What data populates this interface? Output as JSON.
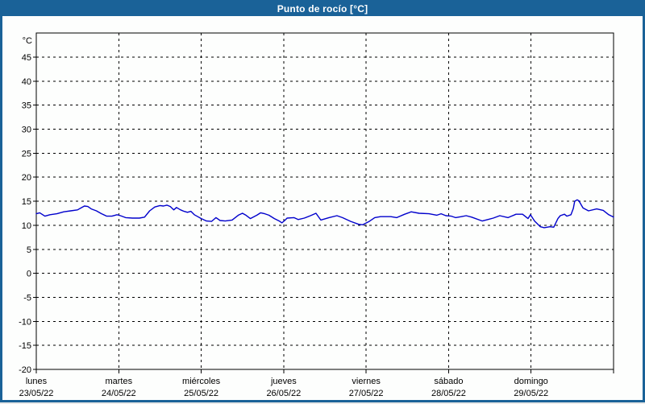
{
  "window": {
    "title": "Punto de rocío [°C]",
    "titlebar_color": "#1a6298",
    "frame_color": "#1a6298",
    "background_color": "#fdfefd"
  },
  "chart_data": {
    "type": "line",
    "title": "Punto de rocío [°C]",
    "ylabel": "°C",
    "unit_label": "°C",
    "ylim": [
      -20,
      50
    ],
    "y_ticks": [
      45,
      40,
      35,
      30,
      25,
      20,
      15,
      10,
      5,
      0,
      -5,
      -10,
      -15,
      -20
    ],
    "grid": true,
    "grid_style": "dashed-black",
    "line_color": "#0000cc",
    "x_axis": {
      "unit": "days",
      "days": [
        {
          "name": "lunes",
          "date": "23/05/22"
        },
        {
          "name": "martes",
          "date": "24/05/22"
        },
        {
          "name": "miércoles",
          "date": "25/05/22"
        },
        {
          "name": "jueves",
          "date": "26/05/22"
        },
        {
          "name": "viernes",
          "date": "27/05/22"
        },
        {
          "name": "sábado",
          "date": "28/05/22"
        },
        {
          "name": "domingo",
          "date": "29/05/22"
        }
      ],
      "hours_total": 168
    },
    "series": [
      {
        "name": "Punto de rocío",
        "unit": "°C",
        "color": "#0000cc",
        "points_hour_value": [
          [
            0,
            12.4
          ],
          [
            1,
            12.6
          ],
          [
            2.5,
            11.9
          ],
          [
            4,
            12.2
          ],
          [
            6,
            12.4
          ],
          [
            8,
            12.8
          ],
          [
            10,
            13.0
          ],
          [
            12,
            13.2
          ],
          [
            13,
            13.6
          ],
          [
            14,
            14.0
          ],
          [
            15,
            13.9
          ],
          [
            16,
            13.4
          ],
          [
            17.5,
            13.0
          ],
          [
            19,
            12.4
          ],
          [
            20.5,
            11.9
          ],
          [
            22,
            11.9
          ],
          [
            23.5,
            12.2
          ],
          [
            24.5,
            12.0
          ],
          [
            26,
            11.6
          ],
          [
            28,
            11.5
          ],
          [
            30,
            11.5
          ],
          [
            31.5,
            11.7
          ],
          [
            33,
            13.0
          ],
          [
            34.5,
            13.8
          ],
          [
            36,
            14.1
          ],
          [
            37,
            14.0
          ],
          [
            38,
            14.2
          ],
          [
            39,
            13.9
          ],
          [
            40,
            13.2
          ],
          [
            40.8,
            13.7
          ],
          [
            42,
            13.2
          ],
          [
            43,
            12.9
          ],
          [
            44,
            12.7
          ],
          [
            45,
            12.9
          ],
          [
            46,
            12.2
          ],
          [
            47,
            11.8
          ],
          [
            48,
            11.4
          ],
          [
            49.5,
            10.9
          ],
          [
            51,
            10.8
          ],
          [
            52.3,
            11.6
          ],
          [
            53.5,
            11.0
          ],
          [
            55,
            10.9
          ],
          [
            57,
            11.1
          ],
          [
            58.8,
            12.1
          ],
          [
            60,
            12.5
          ],
          [
            61,
            12.1
          ],
          [
            62.3,
            11.4
          ],
          [
            64.2,
            12.1
          ],
          [
            65.3,
            12.6
          ],
          [
            66.5,
            12.4
          ],
          [
            67.7,
            12.1
          ],
          [
            69.3,
            11.4
          ],
          [
            70.7,
            10.9
          ],
          [
            71.5,
            10.5
          ],
          [
            72.3,
            11.0
          ],
          [
            73,
            11.5
          ],
          [
            75,
            11.6
          ],
          [
            76.2,
            11.2
          ],
          [
            78,
            11.5
          ],
          [
            79.8,
            12.0
          ],
          [
            81.4,
            12.5
          ],
          [
            82.8,
            11.1
          ],
          [
            85.2,
            11.6
          ],
          [
            87.5,
            12.0
          ],
          [
            89.1,
            11.6
          ],
          [
            91.5,
            10.8
          ],
          [
            93.8,
            10.2
          ],
          [
            95,
            10.1
          ],
          [
            96.9,
            10.8
          ],
          [
            98.5,
            11.6
          ],
          [
            100.2,
            11.8
          ],
          [
            103.2,
            11.8
          ],
          [
            104.9,
            11.6
          ],
          [
            107.2,
            12.3
          ],
          [
            109.1,
            12.8
          ],
          [
            111.4,
            12.5
          ],
          [
            114.3,
            12.4
          ],
          [
            116.6,
            12.1
          ],
          [
            117.8,
            12.4
          ],
          [
            119.2,
            12.0
          ],
          [
            120.8,
            11.9
          ],
          [
            122,
            11.6
          ],
          [
            123.7,
            11.8
          ],
          [
            125.1,
            12.0
          ],
          [
            126.7,
            11.7
          ],
          [
            129.8,
            10.9
          ],
          [
            131.4,
            11.2
          ],
          [
            133,
            11.5
          ],
          [
            134.9,
            12.0
          ],
          [
            137.3,
            11.6
          ],
          [
            139.6,
            12.3
          ],
          [
            141.5,
            12.3
          ],
          [
            143.1,
            11.4
          ],
          [
            143.8,
            12.2
          ],
          [
            145,
            10.9
          ],
          [
            146.7,
            9.7
          ],
          [
            147.8,
            9.5
          ],
          [
            149.5,
            9.7
          ],
          [
            150.6,
            9.6
          ],
          [
            151.8,
            11.4
          ],
          [
            152.5,
            12.0
          ],
          [
            153.7,
            12.3
          ],
          [
            154.4,
            11.9
          ],
          [
            155.6,
            12.2
          ],
          [
            156.3,
            13.5
          ],
          [
            156.7,
            15.0
          ],
          [
            157.4,
            15.3
          ],
          [
            157.9,
            15.1
          ],
          [
            159.1,
            13.6
          ],
          [
            160.7,
            13.0
          ],
          [
            163.1,
            13.4
          ],
          [
            165,
            13.1
          ],
          [
            166.6,
            12.2
          ],
          [
            168,
            11.7
          ]
        ]
      }
    ]
  }
}
